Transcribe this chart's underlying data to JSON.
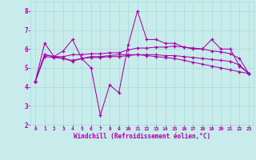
{
  "xlabel": "Windchill (Refroidissement éolien,°C)",
  "background_color": "#c8ecec",
  "grid_color": "#a8d8d8",
  "line_color": "#aa00aa",
  "xlim": [
    -0.5,
    23.5
  ],
  "ylim": [
    2,
    8.5
  ],
  "yticks": [
    2,
    3,
    4,
    5,
    6,
    7,
    8
  ],
  "xticks": [
    0,
    1,
    2,
    3,
    4,
    5,
    6,
    7,
    8,
    9,
    10,
    11,
    12,
    13,
    14,
    15,
    16,
    17,
    18,
    19,
    20,
    21,
    22,
    23
  ],
  "line1_y": [
    4.3,
    6.3,
    5.6,
    5.9,
    6.5,
    5.5,
    5.0,
    2.5,
    4.1,
    3.7,
    6.2,
    8.0,
    6.5,
    6.5,
    6.3,
    6.3,
    6.1,
    6.0,
    6.0,
    6.5,
    6.0,
    6.0,
    5.1,
    4.7
  ],
  "line2_y": [
    4.3,
    5.7,
    5.6,
    5.6,
    5.7,
    5.7,
    5.75,
    5.75,
    5.8,
    5.8,
    5.95,
    6.05,
    6.05,
    6.1,
    6.1,
    6.15,
    6.1,
    6.05,
    6.0,
    5.9,
    5.85,
    5.75,
    5.5,
    4.7
  ],
  "line3_y": [
    4.3,
    5.7,
    5.6,
    5.5,
    5.35,
    5.5,
    5.6,
    5.6,
    5.65,
    5.7,
    5.7,
    5.7,
    5.65,
    5.6,
    5.55,
    5.5,
    5.4,
    5.3,
    5.2,
    5.1,
    5.0,
    4.9,
    4.8,
    4.7
  ],
  "line4_y": [
    4.3,
    5.6,
    5.55,
    5.5,
    5.4,
    5.5,
    5.55,
    5.55,
    5.6,
    5.6,
    5.65,
    5.7,
    5.7,
    5.7,
    5.65,
    5.65,
    5.6,
    5.55,
    5.5,
    5.45,
    5.4,
    5.35,
    5.15,
    4.7
  ]
}
